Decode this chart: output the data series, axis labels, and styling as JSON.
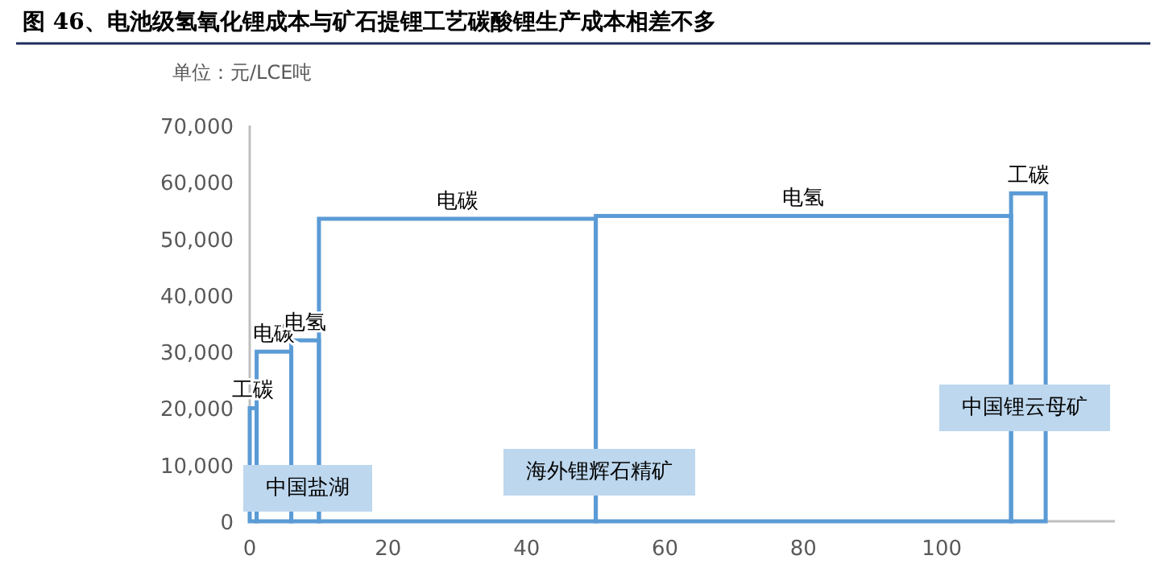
{
  "chart_data": {
    "type": "histogram",
    "title": "图 46、电池级氢氧化锂成本与矿石提锂工艺碳酸锂生产成本相差不多",
    "ylabel": "单位：元/LCE吨",
    "bins": [
      0,
      1,
      6,
      10,
      50,
      110,
      115
    ],
    "values": [
      20000,
      30000,
      32000,
      53500,
      54000,
      58000
    ],
    "color": "#5b9bd5",
    "xlim": [
      0,
      125
    ],
    "xticks": [
      0,
      20,
      40,
      60,
      80,
      100
    ],
    "ylim": [
      0,
      70000
    ],
    "yticks": [
      0,
      {
        "value": 10000,
        "label": "10,000"
      },
      {
        "value": 20000,
        "label": "20,000"
      },
      {
        "value": 30000,
        "label": "30,000"
      },
      {
        "value": 40000,
        "label": "40,000"
      },
      {
        "value": 50000,
        "label": "50,000"
      },
      {
        "value": 60000,
        "label": "60,000"
      },
      {
        "value": 70000,
        "label": "70,000"
      }
    ],
    "annotations": [
      {
        "text": "工碳",
        "x": 0.5,
        "y": 20000
      },
      {
        "text": "电碳",
        "x": 3.5,
        "y": 30000
      },
      {
        "text": "电氢",
        "x": 8,
        "y": 32000
      },
      {
        "text": "电碳",
        "x": 30,
        "y": 53500
      },
      {
        "text": "电氢",
        "x": 80,
        "y": 54000
      },
      {
        "text": "工碳",
        "x": 112.5,
        "y": 58000
      },
      "中国盐湖",
      "海外锂辉石精矿",
      "中国锂云母矿"
    ]
  }
}
